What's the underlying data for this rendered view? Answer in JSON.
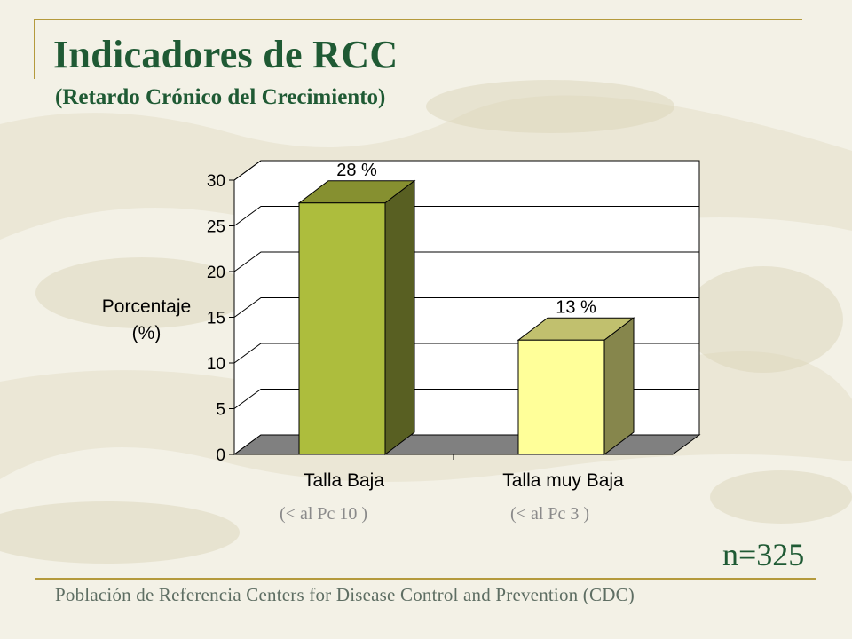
{
  "page": {
    "title": "Indicadores de RCC",
    "subtitle": "(Retardo Crónico del Crecimiento)",
    "sample_size": "n=325",
    "footer": "Población de Referencia Centers for Disease Control and Prevention (CDC)",
    "category_notes": [
      "(< al Pc 10 )",
      "(< al Pc 3 )"
    ],
    "colors": {
      "title": "#1f5a34",
      "frame": "#b49a3c",
      "background": "#f3f1e6"
    }
  },
  "chart_data": {
    "type": "bar",
    "categories": [
      "Talla Baja",
      "Talla muy Baja"
    ],
    "values": [
      27.5,
      12.5
    ],
    "data_labels": [
      "28 %",
      "13 %"
    ],
    "ylabel_lines": [
      "Porcentaje",
      "(%)"
    ],
    "ylim": [
      0,
      30
    ],
    "yticks": [
      0,
      5,
      10,
      15,
      20,
      25,
      30
    ],
    "grid": true,
    "three_d": true,
    "colors": [
      {
        "front": "#adbd3d",
        "top": "#869030",
        "side": "#585f22"
      },
      {
        "front": "#ffff99",
        "top": "#c1c06e",
        "side": "#86864c"
      }
    ],
    "floor_color": "#808080"
  }
}
